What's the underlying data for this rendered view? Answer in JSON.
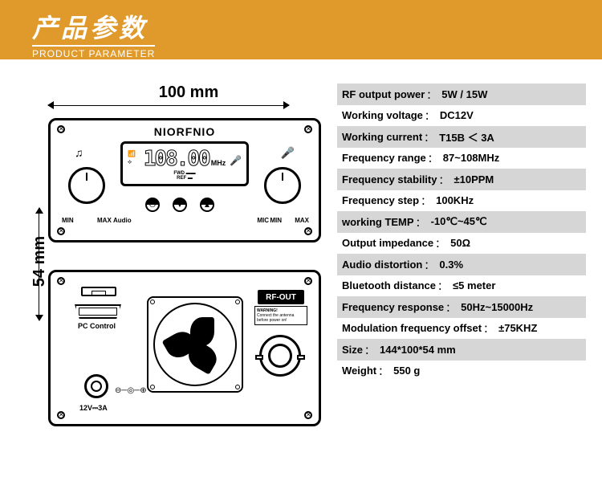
{
  "header": {
    "title_cn": "产品参数",
    "title_en": "PRODUCT PARAMETER",
    "bg_color": "#e09a2b",
    "text_color": "#ffffff"
  },
  "dimensions": {
    "width_label": "100 mm",
    "height_label": "54 mm"
  },
  "device_front": {
    "brand": "NIORFNIO",
    "lcd_value": "108.00",
    "lcd_unit": "MHz",
    "lcd_sub1": "FWD",
    "lcd_sub2": "REF",
    "left_knob_label": "Audio",
    "right_knob_label": "MIC",
    "min": "MIN",
    "max": "MAX",
    "music_icon": "♫",
    "mic_icon": "🎤",
    "bt_icon": "⟡",
    "signal_icon": "📶"
  },
  "device_rear": {
    "pc_control": "PC Control",
    "dc_label": "12V⎓3A",
    "rf_out": "RF-OUT",
    "warning_title": "WARNING!",
    "warning_text": "Connect the antenna before power on!"
  },
  "specs": [
    {
      "label": "RF output power",
      "value": "5W / 15W",
      "shaded": true
    },
    {
      "label": "Working voltage",
      "value": "DC12V",
      "shaded": false
    },
    {
      "label": "Working current",
      "value": "T15B ＜ 3A",
      "shaded": true
    },
    {
      "label": "Frequency range",
      "value": "87~108MHz",
      "shaded": false
    },
    {
      "label": "Frequency stability",
      "value": "±10PPM",
      "shaded": true
    },
    {
      "label": "Frequency step",
      "value": "100KHz",
      "shaded": false
    },
    {
      "label": "working TEMP",
      "value": "-10℃~45℃",
      "shaded": true
    },
    {
      "label": "Output impedance",
      "value": "50Ω",
      "shaded": false
    },
    {
      "label": "Audio distortion",
      "value": "0.3%",
      "shaded": true
    },
    {
      "label": "Bluetooth distance",
      "value": "≤5 meter",
      "shaded": false
    },
    {
      "label": "Frequency response",
      "value": "50Hz~15000Hz",
      "shaded": true
    },
    {
      "label": "Modulation frequency offset",
      "value": "±75KHZ",
      "shaded": false
    },
    {
      "label": "Size",
      "value": "144*100*54 mm",
      "shaded": true
    },
    {
      "label": "Weight",
      "value": "550 g",
      "shaded": false
    }
  ],
  "colors": {
    "shaded_row": "#d6d6d6",
    "text": "#000000"
  }
}
